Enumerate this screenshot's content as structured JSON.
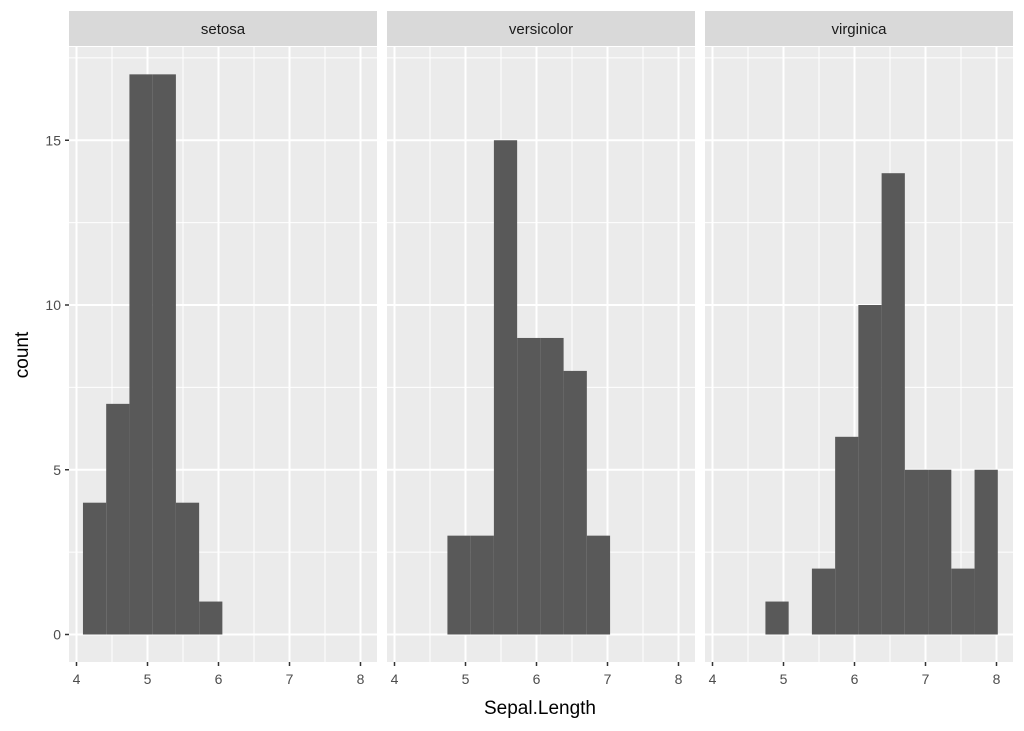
{
  "chart_data": {
    "type": "bar",
    "subtype": "faceted histogram",
    "title": "",
    "xlabel": "Sepal.Length",
    "ylabel": "count",
    "facet_labels": [
      "setosa",
      "versicolor",
      "virginica"
    ],
    "xlim": [
      3.9,
      8.2
    ],
    "ylim": [
      -0.85,
      17.85
    ],
    "x_ticks": [
      4,
      5,
      6,
      7,
      8
    ],
    "y_ticks": [
      0,
      5,
      10,
      15
    ],
    "grid": true,
    "legend": null,
    "bin_width": 0.3273,
    "bin_edges": [
      4.0909,
      4.4182,
      4.7455,
      5.0727,
      5.4,
      5.7273,
      6.0545,
      6.3818,
      6.7091,
      7.0364,
      7.3636,
      7.6909,
      8.0182
    ],
    "series": [
      {
        "name": "setosa",
        "values": [
          4,
          7,
          17,
          17,
          4,
          1,
          0,
          0,
          0,
          0,
          0,
          0
        ]
      },
      {
        "name": "versicolor",
        "values": [
          0,
          0,
          3,
          3,
          15,
          9,
          9,
          8,
          3,
          0,
          0,
          0
        ]
      },
      {
        "name": "virginica",
        "values": [
          0,
          0,
          1,
          0,
          2,
          6,
          10,
          14,
          5,
          5,
          2,
          5
        ]
      }
    ],
    "colors": {
      "bar_fill": "#595959",
      "panel_bg": "#ebebeb",
      "strip_bg": "#d9d9d9",
      "grid": "#ffffff",
      "tick": "#333333"
    }
  }
}
